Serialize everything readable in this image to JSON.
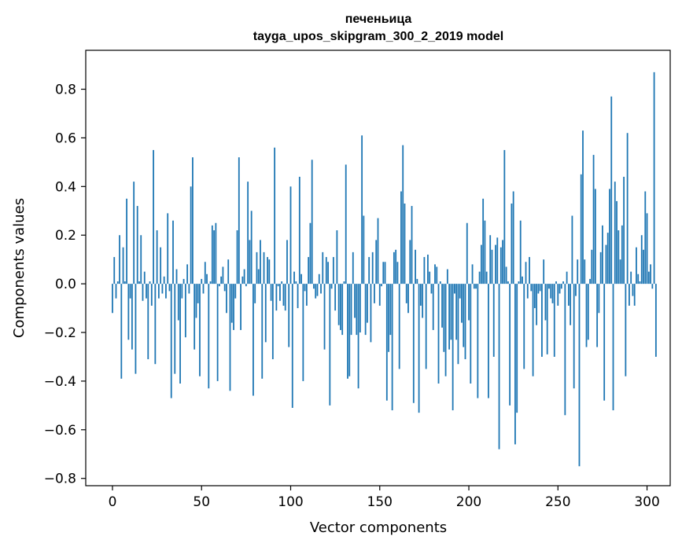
{
  "chart_data": {
    "type": "bar",
    "title": "печеньица",
    "subtitle": "tayga_upos_skipgram_300_2_2019 model",
    "xlabel": "Vector components",
    "ylabel": "Components values",
    "xlim": [
      -15,
      313
    ],
    "ylim": [
      -0.83,
      0.96
    ],
    "xticks": [
      0,
      50,
      100,
      150,
      200,
      250,
      300
    ],
    "xtick_labels": [
      "0",
      "50",
      "100",
      "150",
      "200",
      "250",
      "300"
    ],
    "yticks": [
      -0.8,
      -0.6,
      -0.4,
      -0.2,
      0.0,
      0.2,
      0.4,
      0.6,
      0.8
    ],
    "ytick_labels": [
      "−0.8",
      "−0.6",
      "−0.4",
      "−0.2",
      "0.0",
      "0.2",
      "0.4",
      "0.6",
      "0.8"
    ],
    "grid": false,
    "bar_color": "#1f77b4",
    "series": [
      {
        "values": [
          -0.12,
          0.11,
          -0.06,
          0.01,
          0.2,
          -0.39,
          0.15,
          0.01,
          0.35,
          -0.23,
          -0.06,
          -0.27,
          0.42,
          -0.37,
          0.32,
          0.01,
          0.2,
          -0.07,
          0.05,
          -0.06,
          -0.31,
          0.01,
          -0.09,
          0.55,
          -0.33,
          0.22,
          -0.06,
          0.15,
          -0.04,
          0.03,
          -0.06,
          0.29,
          -0.03,
          -0.47,
          0.26,
          -0.37,
          0.06,
          -0.15,
          -0.41,
          -0.06,
          0.02,
          -0.22,
          0.08,
          -0.04,
          0.4,
          0.52,
          -0.27,
          -0.14,
          -0.08,
          -0.38,
          0.02,
          -0.04,
          0.09,
          0.04,
          -0.43,
          0.01,
          0.24,
          0.22,
          0.25,
          -0.4,
          -0.01,
          0.03,
          0.07,
          -0.03,
          -0.12,
          0.1,
          -0.44,
          -0.16,
          -0.19,
          -0.06,
          0.22,
          0.52,
          -0.19,
          0.03,
          0.06,
          -0.01,
          0.42,
          0.18,
          0.3,
          -0.46,
          -0.08,
          0.13,
          0.06,
          0.18,
          -0.39,
          0.13,
          -0.24,
          0.11,
          0.1,
          -0.07,
          -0.31,
          0.56,
          -0.11,
          -0.01,
          -0.07,
          0.01,
          -0.09,
          -0.11,
          0.18,
          -0.26,
          0.4,
          -0.51,
          0.05,
          0.01,
          -0.1,
          0.44,
          0.04,
          -0.4,
          -0.03,
          -0.09,
          0.11,
          0.25,
          0.51,
          -0.02,
          -0.06,
          -0.05,
          0.04,
          -0.04,
          0.13,
          -0.27,
          0.11,
          0.09,
          -0.5,
          -0.02,
          0.11,
          -0.11,
          0.22,
          -0.17,
          -0.19,
          -0.21,
          0.01,
          0.49,
          -0.39,
          -0.38,
          -0.21,
          0.13,
          -0.14,
          -0.21,
          -0.43,
          -0.2,
          0.61,
          0.28,
          -0.21,
          -0.16,
          0.11,
          -0.24,
          0.13,
          -0.08,
          0.18,
          0.27,
          -0.09,
          -0.01,
          0.09,
          0.09,
          -0.48,
          -0.28,
          -0.21,
          -0.52,
          0.13,
          0.14,
          0.09,
          -0.35,
          0.38,
          0.57,
          0.33,
          -0.08,
          -0.12,
          0.18,
          0.32,
          -0.49,
          0.14,
          0.02,
          -0.53,
          -0.09,
          -0.14,
          0.11,
          -0.35,
          0.12,
          0.05,
          -0.04,
          -0.19,
          0.08,
          0.07,
          -0.41,
          0.01,
          -0.18,
          -0.28,
          -0.38,
          0.06,
          -0.27,
          -0.23,
          -0.52,
          -0.04,
          -0.23,
          -0.33,
          -0.06,
          -0.16,
          -0.26,
          -0.31,
          0.25,
          -0.15,
          -0.41,
          0.08,
          -0.02,
          -0.02,
          -0.47,
          0.05,
          0.16,
          0.35,
          0.26,
          0.05,
          -0.47,
          0.2,
          0.14,
          -0.3,
          0.16,
          0.19,
          -0.68,
          0.15,
          0.18,
          0.55,
          0.07,
          0.01,
          -0.5,
          0.33,
          0.38,
          -0.66,
          -0.53,
          0.01,
          0.26,
          0.03,
          -0.35,
          0.09,
          -0.06,
          0.11,
          -0.03,
          -0.38,
          -0.1,
          -0.17,
          -0.04,
          -0.03,
          -0.3,
          0.1,
          -0.15,
          -0.29,
          -0.02,
          -0.06,
          -0.08,
          -0.3,
          0.01,
          -0.09,
          -0.04,
          -0.02,
          0.01,
          -0.54,
          0.05,
          -0.09,
          -0.17,
          0.28,
          -0.43,
          -0.05,
          0.1,
          -0.75,
          0.45,
          0.63,
          0.1,
          -0.26,
          -0.23,
          0.02,
          0.14,
          0.53,
          0.39,
          -0.26,
          -0.12,
          0.13,
          0.24,
          -0.48,
          0.16,
          0.21,
          0.39,
          0.77,
          -0.52,
          0.42,
          0.34,
          0.22,
          0.1,
          0.24,
          0.44,
          -0.38,
          0.62,
          -0.09,
          0.05,
          -0.05,
          -0.09,
          0.15,
          0.04,
          0.01,
          0.2,
          0.14,
          0.38,
          0.29,
          0.05,
          0.08,
          -0.02,
          0.87,
          -0.3
        ]
      }
    ]
  }
}
